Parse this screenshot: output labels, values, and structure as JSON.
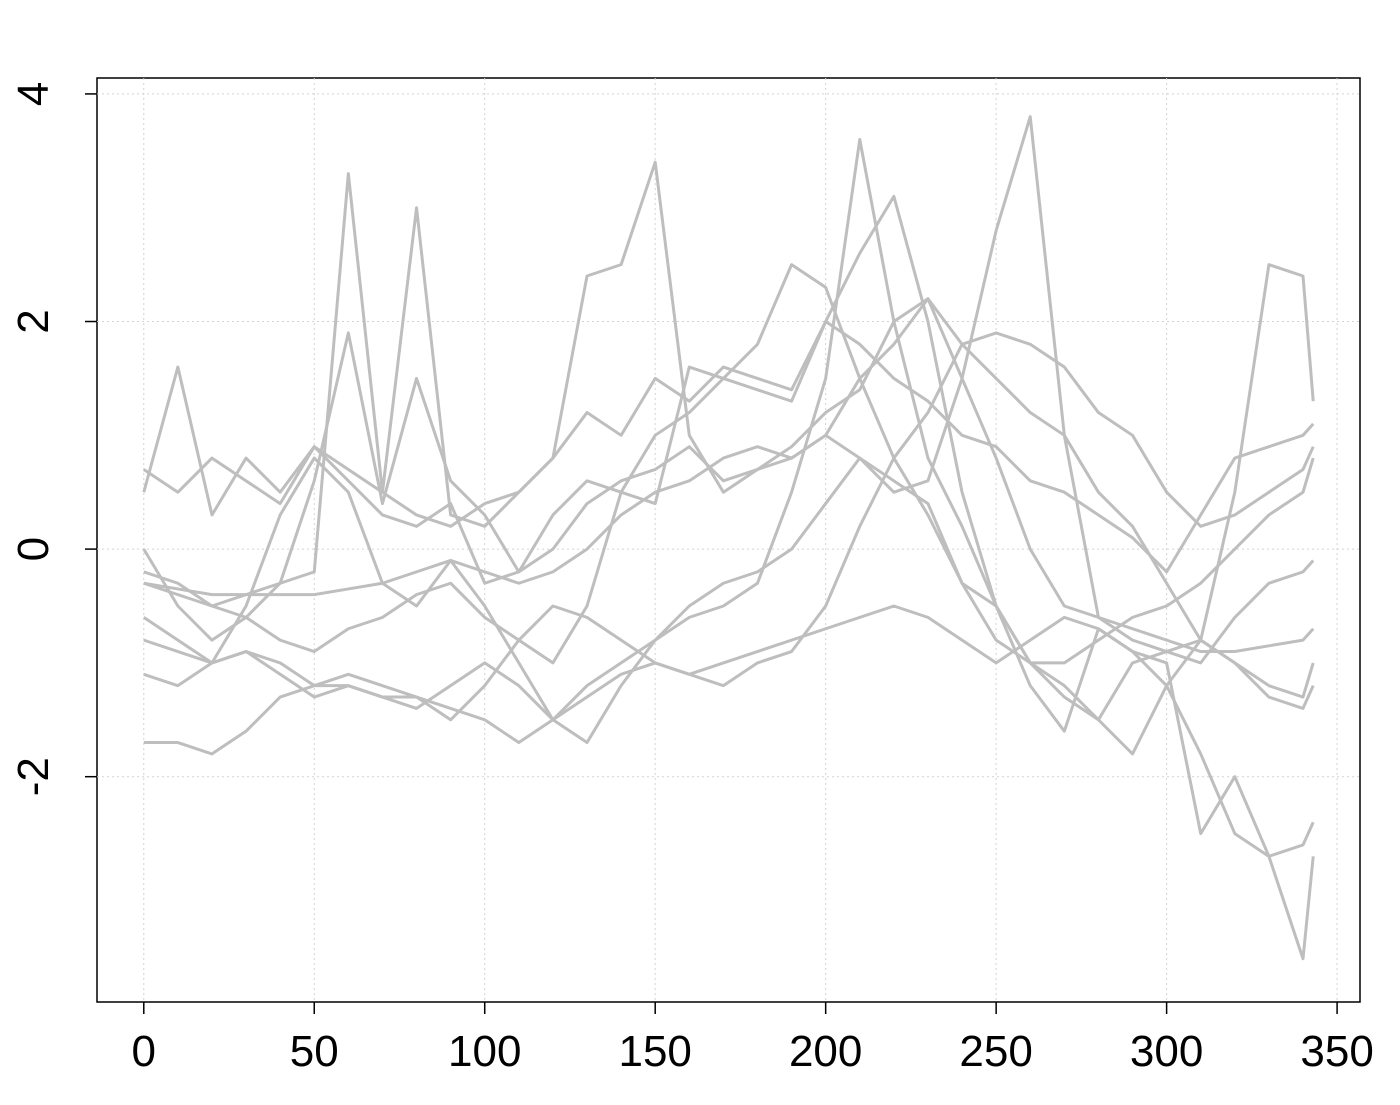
{
  "chart_data": {
    "type": "line",
    "x": [
      0,
      10,
      20,
      30,
      40,
      50,
      60,
      70,
      80,
      90,
      100,
      110,
      120,
      130,
      140,
      150,
      160,
      170,
      180,
      190,
      200,
      210,
      220,
      230,
      240,
      250,
      260,
      270,
      280,
      290,
      300,
      310,
      320,
      330,
      340,
      343
    ],
    "series": [
      {
        "color": "#bebebe",
        "values": [
          -0.3,
          -0.4,
          -0.5,
          -0.4,
          -0.3,
          -0.2,
          3.3,
          0.5,
          3.0,
          0.3,
          0.2,
          0.5,
          0.8,
          1.2,
          1.0,
          1.5,
          1.3,
          1.6,
          1.5,
          1.4,
          2.0,
          1.8,
          1.5,
          1.3,
          1.0,
          0.9,
          0.6,
          0.5,
          0.3,
          0.1,
          -0.2,
          0.3,
          0.8,
          0.9,
          1.0,
          1.1
        ]
      },
      {
        "color": "#bebebe",
        "values": [
          0.7,
          0.5,
          0.8,
          0.6,
          0.4,
          0.9,
          0.7,
          0.5,
          0.3,
          0.2,
          0.4,
          0.5,
          0.8,
          2.4,
          2.5,
          3.4,
          1.0,
          0.5,
          0.7,
          0.9,
          1.2,
          1.4,
          2.0,
          2.2,
          1.8,
          1.5,
          1.2,
          1.0,
          0.5,
          0.2,
          -0.3,
          -0.8,
          0.5,
          2.5,
          2.4,
          1.3
        ]
      },
      {
        "color": "#bebebe",
        "values": [
          -1.1,
          -1.2,
          -1.0,
          -0.9,
          -1.1,
          -1.3,
          -1.2,
          -1.3,
          -1.3,
          -1.4,
          -1.5,
          -1.7,
          -1.5,
          -1.2,
          -1.0,
          -0.8,
          -0.6,
          -0.5,
          -0.3,
          0.5,
          1.5,
          3.6,
          2.0,
          0.8,
          0.2,
          -0.5,
          -1.0,
          -1.3,
          -1.5,
          -1.0,
          -0.9,
          -0.8,
          -1.0,
          -1.2,
          -1.3,
          -1.0
        ]
      },
      {
        "color": "#bebebe",
        "values": [
          -0.3,
          -0.35,
          -0.4,
          -0.4,
          -0.4,
          -0.4,
          -0.35,
          -0.3,
          -0.2,
          -0.1,
          -0.2,
          -0.3,
          -0.2,
          0.0,
          0.3,
          0.5,
          0.6,
          0.8,
          0.9,
          0.8,
          1.0,
          0.8,
          0.5,
          0.6,
          1.5,
          2.8,
          3.8,
          1.0,
          -0.6,
          -0.7,
          -0.8,
          -0.9,
          -0.9,
          -0.85,
          -0.8,
          -0.7
        ]
      },
      {
        "color": "#bebebe",
        "values": [
          -1.7,
          -1.7,
          -1.8,
          -1.6,
          -1.3,
          -1.2,
          -1.2,
          -1.3,
          -1.4,
          -1.2,
          -1.0,
          -1.2,
          -1.5,
          -1.3,
          -1.1,
          -1.0,
          -1.1,
          -1.0,
          -0.9,
          -0.8,
          -0.7,
          -0.6,
          -0.5,
          -0.6,
          -0.8,
          -1.0,
          -0.8,
          -0.6,
          -0.7,
          -0.9,
          -1.2,
          -1.8,
          -2.5,
          -2.7,
          -3.6,
          -2.7
        ]
      },
      {
        "color": "#bebebe",
        "values": [
          0.5,
          1.6,
          0.3,
          0.8,
          0.5,
          0.9,
          0.6,
          0.3,
          0.2,
          0.4,
          -0.3,
          -0.2,
          0.3,
          0.6,
          0.5,
          0.4,
          1.6,
          1.5,
          1.4,
          1.3,
          2.0,
          2.6,
          3.1,
          2.0,
          0.5,
          -0.5,
          -1.2,
          -1.6,
          -0.7,
          -0.9,
          -1.0,
          -2.5,
          -2.0,
          -2.7,
          -2.6,
          -2.4
        ]
      },
      {
        "color": "#bebebe",
        "values": [
          0.0,
          -0.5,
          -0.8,
          -0.6,
          -0.3,
          0.6,
          1.9,
          0.4,
          1.5,
          0.6,
          0.3,
          -0.2,
          0.0,
          0.4,
          0.6,
          0.7,
          0.9,
          0.6,
          0.7,
          0.8,
          1.0,
          1.5,
          1.8,
          2.2,
          1.5,
          0.8,
          0.0,
          -0.5,
          -0.6,
          -0.8,
          -0.9,
          -1.0,
          -0.6,
          -0.3,
          -0.2,
          -0.1
        ]
      },
      {
        "color": "#bebebe",
        "values": [
          -0.6,
          -0.8,
          -1.0,
          -0.9,
          -1.0,
          -1.2,
          -1.1,
          -1.2,
          -1.3,
          -1.5,
          -1.2,
          -0.8,
          -0.5,
          -0.6,
          -0.8,
          -1.0,
          -1.1,
          -1.2,
          -1.0,
          -0.9,
          -0.5,
          0.2,
          0.8,
          1.2,
          1.8,
          1.9,
          1.8,
          1.6,
          1.2,
          1.0,
          0.5,
          0.2,
          0.3,
          0.5,
          0.7,
          0.9
        ]
      },
      {
        "color": "#bebebe",
        "values": [
          -0.2,
          -0.3,
          -0.5,
          -0.6,
          -0.8,
          -0.9,
          -0.7,
          -0.6,
          -0.4,
          -0.3,
          -0.6,
          -0.8,
          -1.0,
          -0.5,
          0.5,
          1.0,
          1.2,
          1.5,
          1.8,
          2.5,
          2.3,
          1.5,
          0.8,
          0.3,
          -0.3,
          -0.8,
          -1.0,
          -1.0,
          -0.8,
          -0.6,
          -0.5,
          -0.3,
          0.0,
          0.3,
          0.5,
          0.8
        ]
      },
      {
        "color": "#bebebe",
        "values": [
          -0.8,
          -0.9,
          -1.0,
          -0.5,
          0.3,
          0.8,
          0.5,
          -0.3,
          -0.5,
          -0.1,
          -0.5,
          -1.0,
          -1.5,
          -1.7,
          -1.2,
          -0.8,
          -0.5,
          -0.3,
          -0.2,
          0.0,
          0.4,
          0.8,
          0.6,
          0.4,
          -0.3,
          -0.5,
          -1.0,
          -1.2,
          -1.5,
          -1.8,
          -1.2,
          -0.8,
          -1.0,
          -1.3,
          -1.4,
          -1.2
        ]
      }
    ],
    "xlim": [
      -13.72,
      356.72
    ],
    "ylim": [
      -3.98,
      4.14
    ],
    "xticks": [
      0,
      50,
      100,
      150,
      200,
      250,
      300,
      350
    ],
    "yticks": [
      -2,
      0,
      2,
      4
    ],
    "grid": true
  }
}
